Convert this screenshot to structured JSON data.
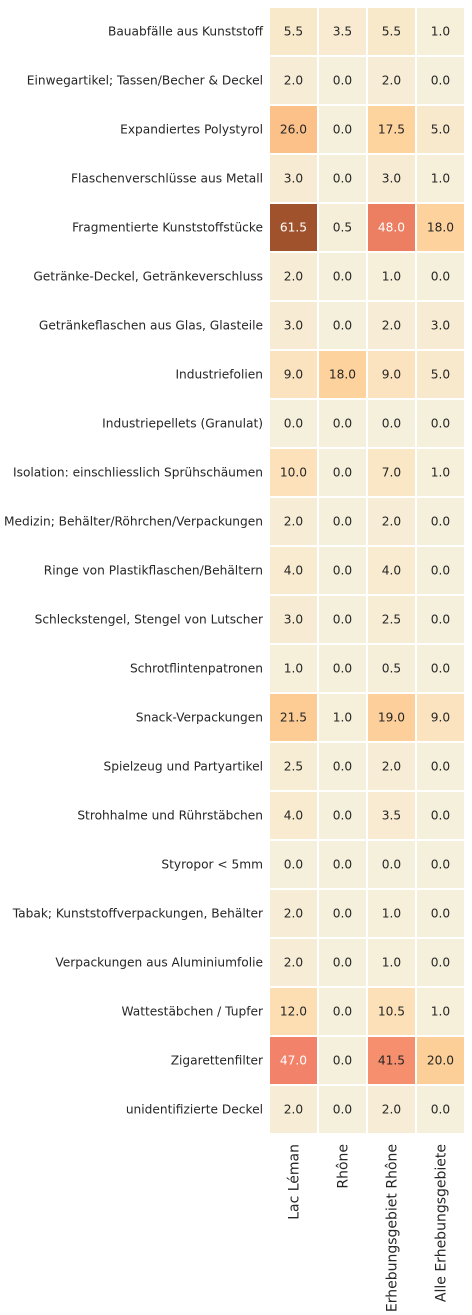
{
  "chart_data": {
    "type": "heatmap",
    "title": "",
    "xlabel": "",
    "ylabel": "",
    "columns": [
      "Lac Léman",
      "Rhône",
      "Erhebungsgebiet Rhône",
      "Alle Erhebungsgebiete"
    ],
    "rows": [
      "Bauabfälle aus Kunststoff",
      "Einwegartikel; Tassen/Becher & Deckel",
      "Expandiertes Polystyrol",
      "Flaschenverschlüsse aus Metall",
      "Fragmentierte Kunststoffstücke",
      "Getränke-Deckel, Getränkeverschluss",
      "Getränkeflaschen aus Glas, Glasteile",
      "Industriefolien",
      "Industriepellets (Granulat)",
      "Isolation: einschliesslich Sprühschäumen",
      "Medizin; Behälter/Röhrchen/Verpackungen",
      "Ringe von Plastikflaschen/Behältern",
      "Schleckstengel, Stengel von Lutscher",
      "Schrotflintenpatronen",
      "Snack-Verpackungen",
      "Spielzeug und Partyartikel",
      "Strohhalme und Rührstäbchen",
      "Styropor < 5mm",
      "Tabak; Kunststoffverpackungen, Behälter",
      "Verpackungen aus Aluminiumfolie",
      "Wattestäbchen / Tupfer",
      "Zigarettenfilter",
      "unidentifizierte Deckel"
    ],
    "values": [
      [
        5.5,
        3.5,
        5.5,
        1.0
      ],
      [
        2.0,
        0.0,
        2.0,
        0.0
      ],
      [
        26.0,
        0.0,
        17.5,
        5.0
      ],
      [
        3.0,
        0.0,
        3.0,
        1.0
      ],
      [
        61.5,
        0.5,
        48.0,
        18.0
      ],
      [
        2.0,
        0.0,
        1.0,
        0.0
      ],
      [
        3.0,
        0.0,
        2.0,
        3.0
      ],
      [
        9.0,
        18.0,
        9.0,
        5.0
      ],
      [
        0.0,
        0.0,
        0.0,
        0.0
      ],
      [
        10.0,
        0.0,
        7.0,
        1.0
      ],
      [
        2.0,
        0.0,
        2.0,
        0.0
      ],
      [
        4.0,
        0.0,
        4.0,
        0.0
      ],
      [
        3.0,
        0.0,
        2.5,
        0.0
      ],
      [
        1.0,
        0.0,
        0.5,
        0.0
      ],
      [
        21.5,
        1.0,
        19.0,
        9.0
      ],
      [
        2.5,
        0.0,
        2.0,
        0.0
      ],
      [
        4.0,
        0.0,
        3.5,
        0.0
      ],
      [
        0.0,
        0.0,
        0.0,
        0.0
      ],
      [
        2.0,
        0.0,
        1.0,
        0.0
      ],
      [
        2.0,
        0.0,
        1.0,
        0.0
      ],
      [
        12.0,
        0.0,
        10.5,
        1.0
      ],
      [
        47.0,
        0.0,
        41.5,
        20.0
      ],
      [
        2.0,
        0.0,
        2.0,
        0.0
      ]
    ],
    "value_format": "one decimal",
    "colorbar": false,
    "colormap": [
      "#f5f0dc",
      "#fbe6c4",
      "#fdd7a4",
      "#fcc990",
      "#f9b37e",
      "#f5956d",
      "#f7856f",
      "#c9683a",
      "#a0522d"
    ],
    "colormap_range": [
      0,
      61.5
    ],
    "gridline_color": "#ffffff",
    "light_text_color": "#ffffff",
    "dark_text_color": "#262626"
  }
}
